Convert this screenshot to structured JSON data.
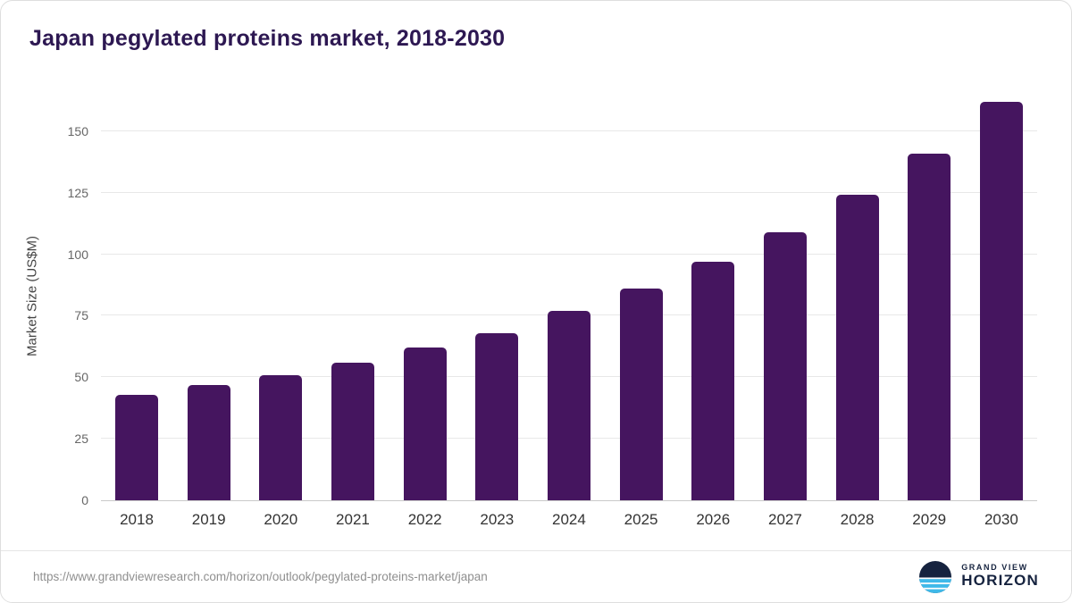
{
  "title": "Japan pegylated proteins market, 2018-2030",
  "footer": {
    "source_url": "https://www.grandviewresearch.com/horizon/outlook/pegylated-proteins-market/japan",
    "brand_top": "GRAND VIEW",
    "brand_bottom": "HORIZON"
  },
  "colors": {
    "bar": "#45155f",
    "title": "#2d1852",
    "grid": "#e8e8e8",
    "axis_text": "#666666",
    "brand_navy": "#16233f",
    "brand_blue": "#3fb9e9"
  },
  "chart_data": {
    "type": "bar",
    "title": "Japan pegylated proteins market, 2018-2030",
    "categories": [
      "2018",
      "2019",
      "2020",
      "2021",
      "2022",
      "2023",
      "2024",
      "2025",
      "2026",
      "2027",
      "2028",
      "2029",
      "2030"
    ],
    "values": [
      43,
      47,
      51,
      56,
      62,
      68,
      77,
      86,
      97,
      109,
      124,
      141,
      162
    ],
    "xlabel": "",
    "ylabel": "Market Size (US$M)",
    "ylim": [
      0,
      167
    ],
    "yticks": [
      0,
      25,
      50,
      75,
      100,
      125,
      150
    ],
    "grid": true,
    "legend": false,
    "bar_color": "#45155f"
  }
}
